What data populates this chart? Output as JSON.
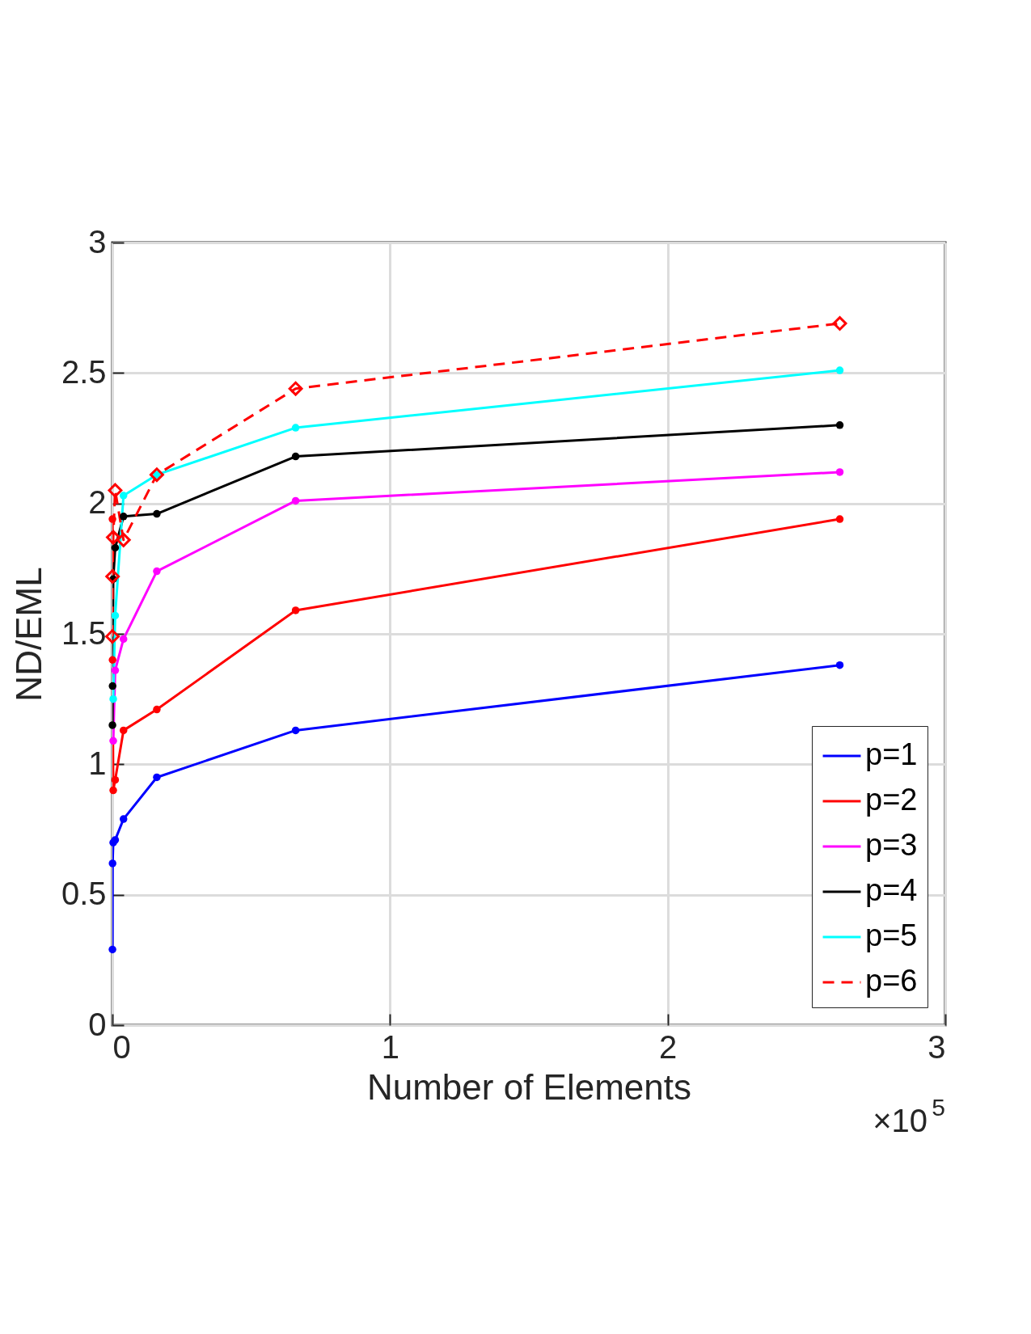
{
  "chart_data": {
    "type": "line",
    "xlabel": "Number of Elements",
    "ylabel": "ND/EML",
    "xlim": [
      0,
      3
    ],
    "xticks": [
      0,
      1,
      2,
      3
    ],
    "ylim": [
      0,
      3
    ],
    "yticks": [
      0,
      0.5,
      1,
      1.5,
      2,
      2.5,
      3
    ],
    "grid": true,
    "legend": "bottom right",
    "marker": "circle",
    "line_style": "solid",
    "annotations": [
      "×10$^{5}$"
    ],
    "series": [
      {
        "name": "p=1",
        "color": "#0000ff",
        "x": [
          0.0002,
          0.0006,
          0.003,
          0.01,
          0.04,
          0.16,
          0.66,
          2.62
        ],
        "values": [
          0.29,
          0.62,
          0.7,
          0.71,
          0.79,
          0.95,
          1.13,
          1.38
        ]
      },
      {
        "name": "p=2",
        "color": "#ff0000",
        "x": [
          0.0002,
          0.0006,
          0.003,
          0.01,
          0.04,
          0.16,
          0.66,
          2.62
        ],
        "values": [
          1.94,
          1.4,
          0.9,
          0.94,
          1.13,
          1.21,
          1.59,
          1.94
        ]
      },
      {
        "name": "p=3",
        "color": "#ff00ff",
        "x": [
          0.003,
          0.01,
          0.04,
          0.16,
          0.66,
          2.62
        ],
        "values": [
          1.09,
          1.36,
          1.48,
          1.74,
          2.01,
          2.12
        ]
      },
      {
        "name": "p=4",
        "color": "#000000",
        "x": [
          0.0002,
          0.0006,
          0.003,
          0.01,
          0.04,
          0.16,
          0.66,
          2.62
        ],
        "values": [
          1.15,
          1.3,
          1.71,
          1.83,
          1.95,
          1.96,
          2.18,
          2.3
        ]
      },
      {
        "name": "p=5",
        "color": "#00ffff",
        "x": [
          0.003,
          0.01,
          0.04,
          0.16,
          0.66,
          2.62
        ],
        "values": [
          1.25,
          1.57,
          2.03,
          2.11,
          2.29,
          2.51
        ]
      },
      {
        "name": "p=6",
        "color": "#ff0000",
        "marker": "diamond",
        "line_style": "dashed",
        "x": [
          0.0002,
          0.0006,
          0.003,
          0.01,
          0.04,
          0.16,
          0.66,
          2.62
        ],
        "values": [
          1.49,
          1.72,
          1.87,
          2.05,
          1.86,
          2.11,
          2.44,
          2.69
        ]
      }
    ]
  }
}
